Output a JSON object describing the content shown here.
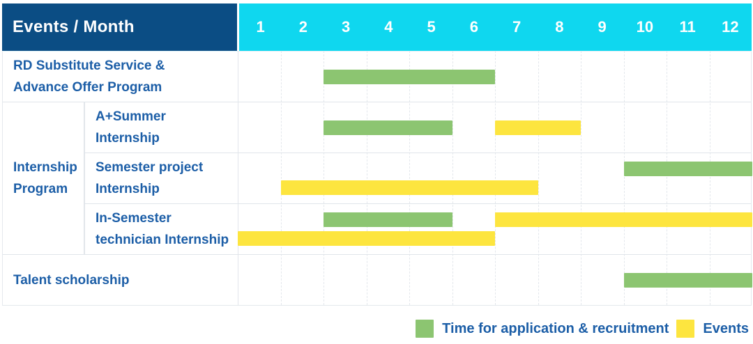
{
  "header": {
    "title": "Events / Month",
    "months": [
      "1",
      "2",
      "3",
      "4",
      "5",
      "6",
      "7",
      "8",
      "9",
      "10",
      "11",
      "12"
    ]
  },
  "group": {
    "label": "Internship Program",
    "label_lines": [
      "Internship",
      "Program"
    ],
    "spans_rows": [
      1,
      2,
      3
    ]
  },
  "colors": {
    "header_navy": "#0b4d84",
    "header_cyan": "#0fd7ef",
    "application_green": "#8cc571",
    "event_yellow": "#fde53f",
    "label_blue": "#1c5ea7"
  },
  "chart_data": {
    "type": "bar",
    "variant": "gantt-table",
    "title": "Events / Month",
    "xlabel": "Month",
    "x_range": [
      1,
      12
    ],
    "x_ticks": [
      1,
      2,
      3,
      4,
      5,
      6,
      7,
      8,
      9,
      10,
      11,
      12
    ],
    "grid": true,
    "legend_position": "bottom-right",
    "legend": [
      {
        "key": "application",
        "label": "Time for application & recruitment",
        "color": "#8cc571"
      },
      {
        "key": "event",
        "label": "Events",
        "color": "#fde53f"
      }
    ],
    "rows": [
      {
        "label": "RD Substitute Service & Advance Offer Program",
        "label_lines": [
          "RD Substitute Service &",
          "Advance Offer Program"
        ],
        "group": null,
        "bars": [
          {
            "kind": "application",
            "start_month": 3,
            "end_month": 6,
            "lane": "center"
          }
        ]
      },
      {
        "label": "A+Summer Internship",
        "label_lines": [
          "A+Summer",
          "Internship"
        ],
        "group": "Internship Program",
        "bars": [
          {
            "kind": "application",
            "start_month": 3,
            "end_month": 5,
            "lane": "center"
          },
          {
            "kind": "event",
            "start_month": 7,
            "end_month": 8,
            "lane": "center"
          }
        ]
      },
      {
        "label": "Semester project Internship",
        "label_lines": [
          "Semester project",
          "Internship"
        ],
        "group": "Internship Program",
        "bars": [
          {
            "kind": "application",
            "start_month": 10,
            "end_month": 12,
            "lane": "top"
          },
          {
            "kind": "event",
            "start_month": 2,
            "end_month": 7,
            "lane": "bottom"
          }
        ]
      },
      {
        "label": "In-Semester technician Internship",
        "label_lines": [
          "In-Semester",
          "technician Internship"
        ],
        "group": "Internship Program",
        "bars": [
          {
            "kind": "application",
            "start_month": 3,
            "end_month": 5,
            "lane": "top"
          },
          {
            "kind": "event",
            "start_month": 7,
            "end_month": 12,
            "lane": "top"
          },
          {
            "kind": "event",
            "start_month": 1,
            "end_month": 6,
            "lane": "bottom"
          }
        ]
      },
      {
        "label": "Talent scholarship",
        "label_lines": [
          "Talent scholarship"
        ],
        "group": null,
        "bars": [
          {
            "kind": "application",
            "start_month": 10,
            "end_month": 12,
            "lane": "center"
          }
        ]
      }
    ]
  }
}
